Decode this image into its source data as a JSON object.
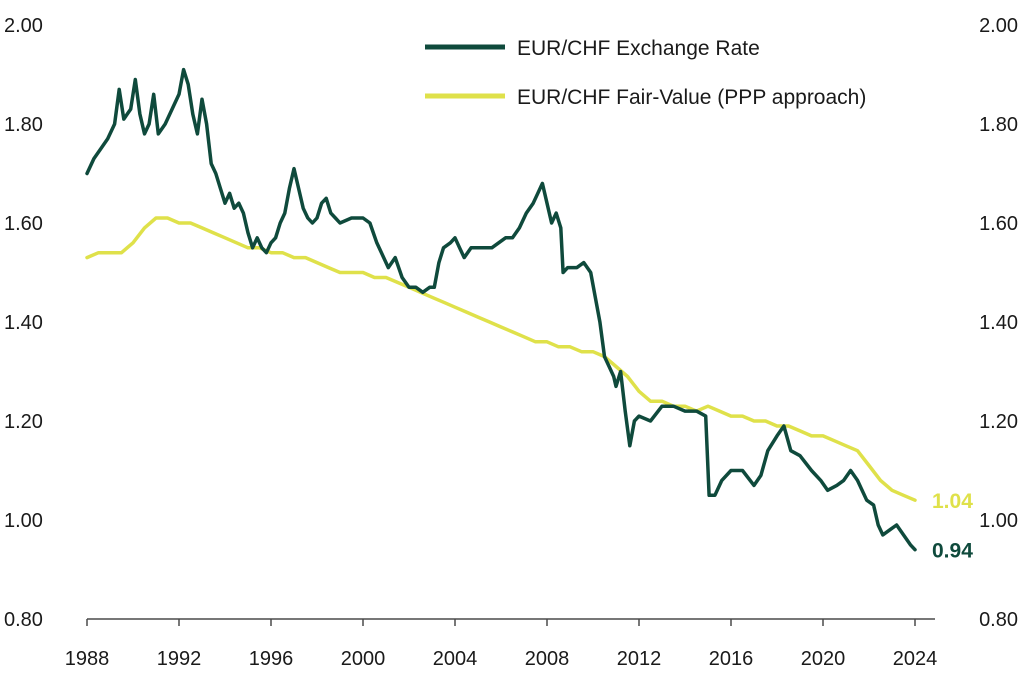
{
  "chart_data": {
    "type": "line",
    "title": "",
    "xlabel": "",
    "ylabel": "",
    "xlim": [
      1988,
      2024.5
    ],
    "ylim": [
      0.8,
      2.0
    ],
    "grid": false,
    "legend_position": "top-right",
    "x_ticks": [
      "1988",
      "1992",
      "1996",
      "2000",
      "2004",
      "2008",
      "2012",
      "2016",
      "2020",
      "2024"
    ],
    "x_tick_values": [
      1988,
      1992,
      1996,
      2000,
      2004,
      2008,
      2012,
      2016,
      2020,
      2024
    ],
    "y_ticks_left": [
      "0.80",
      "1.00",
      "1.20",
      "1.40",
      "1.60",
      "1.80",
      "2.00"
    ],
    "y_ticks_right": [
      "0.80",
      "1.00",
      "1.20",
      "1.40",
      "1.60",
      "1.80",
      "2.00"
    ],
    "y_tick_values": [
      0.8,
      1.0,
      1.2,
      1.4,
      1.6,
      1.8,
      2.0
    ],
    "series": [
      {
        "name": "EUR/CHF Exchange Rate",
        "color": "#0f4a3c",
        "end_label": "0.94",
        "points": [
          [
            1988.0,
            1.7
          ],
          [
            1988.3,
            1.73
          ],
          [
            1988.6,
            1.75
          ],
          [
            1988.9,
            1.77
          ],
          [
            1989.2,
            1.8
          ],
          [
            1989.4,
            1.87
          ],
          [
            1989.6,
            1.81
          ],
          [
            1989.9,
            1.83
          ],
          [
            1990.1,
            1.89
          ],
          [
            1990.3,
            1.82
          ],
          [
            1990.5,
            1.78
          ],
          [
            1990.7,
            1.8
          ],
          [
            1990.9,
            1.86
          ],
          [
            1991.1,
            1.78
          ],
          [
            1991.4,
            1.8
          ],
          [
            1991.7,
            1.83
          ],
          [
            1992.0,
            1.86
          ],
          [
            1992.2,
            1.91
          ],
          [
            1992.4,
            1.88
          ],
          [
            1992.6,
            1.82
          ],
          [
            1992.8,
            1.78
          ],
          [
            1993.0,
            1.85
          ],
          [
            1993.2,
            1.8
          ],
          [
            1993.4,
            1.72
          ],
          [
            1993.6,
            1.7
          ],
          [
            1993.8,
            1.67
          ],
          [
            1994.0,
            1.64
          ],
          [
            1994.2,
            1.66
          ],
          [
            1994.4,
            1.63
          ],
          [
            1994.6,
            1.64
          ],
          [
            1994.8,
            1.62
          ],
          [
            1995.0,
            1.58
          ],
          [
            1995.2,
            1.55
          ],
          [
            1995.4,
            1.57
          ],
          [
            1995.6,
            1.55
          ],
          [
            1995.8,
            1.54
          ],
          [
            1996.0,
            1.56
          ],
          [
            1996.2,
            1.57
          ],
          [
            1996.4,
            1.6
          ],
          [
            1996.6,
            1.62
          ],
          [
            1996.8,
            1.67
          ],
          [
            1997.0,
            1.71
          ],
          [
            1997.2,
            1.67
          ],
          [
            1997.4,
            1.63
          ],
          [
            1997.6,
            1.61
          ],
          [
            1997.8,
            1.6
          ],
          [
            1998.0,
            1.61
          ],
          [
            1998.2,
            1.64
          ],
          [
            1998.4,
            1.65
          ],
          [
            1998.6,
            1.62
          ],
          [
            1998.8,
            1.61
          ],
          [
            1999.0,
            1.6
          ],
          [
            1999.5,
            1.61
          ],
          [
            2000.0,
            1.61
          ],
          [
            2000.3,
            1.6
          ],
          [
            2000.6,
            1.56
          ],
          [
            2000.9,
            1.53
          ],
          [
            2001.1,
            1.51
          ],
          [
            2001.4,
            1.53
          ],
          [
            2001.7,
            1.49
          ],
          [
            2002.0,
            1.47
          ],
          [
            2002.3,
            1.47
          ],
          [
            2002.6,
            1.46
          ],
          [
            2002.9,
            1.47
          ],
          [
            2003.1,
            1.47
          ],
          [
            2003.3,
            1.52
          ],
          [
            2003.5,
            1.55
          ],
          [
            2003.8,
            1.56
          ],
          [
            2004.0,
            1.57
          ],
          [
            2004.2,
            1.55
          ],
          [
            2004.4,
            1.53
          ],
          [
            2004.7,
            1.55
          ],
          [
            2005.0,
            1.55
          ],
          [
            2005.3,
            1.55
          ],
          [
            2005.6,
            1.55
          ],
          [
            2005.9,
            1.56
          ],
          [
            2006.2,
            1.57
          ],
          [
            2006.5,
            1.57
          ],
          [
            2006.8,
            1.59
          ],
          [
            2007.1,
            1.62
          ],
          [
            2007.4,
            1.64
          ],
          [
            2007.6,
            1.66
          ],
          [
            2007.8,
            1.68
          ],
          [
            2008.0,
            1.64
          ],
          [
            2008.2,
            1.6
          ],
          [
            2008.4,
            1.62
          ],
          [
            2008.6,
            1.59
          ],
          [
            2008.7,
            1.5
          ],
          [
            2008.9,
            1.51
          ],
          [
            2009.1,
            1.51
          ],
          [
            2009.3,
            1.51
          ],
          [
            2009.6,
            1.52
          ],
          [
            2009.9,
            1.5
          ],
          [
            2010.1,
            1.45
          ],
          [
            2010.3,
            1.4
          ],
          [
            2010.5,
            1.33
          ],
          [
            2010.7,
            1.31
          ],
          [
            2010.9,
            1.29
          ],
          [
            2011.0,
            1.27
          ],
          [
            2011.2,
            1.3
          ],
          [
            2011.4,
            1.22
          ],
          [
            2011.6,
            1.15
          ],
          [
            2011.8,
            1.2
          ],
          [
            2012.0,
            1.21
          ],
          [
            2012.5,
            1.2
          ],
          [
            2013.0,
            1.23
          ],
          [
            2013.5,
            1.23
          ],
          [
            2014.0,
            1.22
          ],
          [
            2014.5,
            1.22
          ],
          [
            2014.9,
            1.21
          ],
          [
            2015.05,
            1.05
          ],
          [
            2015.3,
            1.05
          ],
          [
            2015.6,
            1.08
          ],
          [
            2016.0,
            1.1
          ],
          [
            2016.5,
            1.1
          ],
          [
            2017.0,
            1.07
          ],
          [
            2017.3,
            1.09
          ],
          [
            2017.6,
            1.14
          ],
          [
            2018.0,
            1.17
          ],
          [
            2018.3,
            1.19
          ],
          [
            2018.6,
            1.14
          ],
          [
            2019.0,
            1.13
          ],
          [
            2019.5,
            1.1
          ],
          [
            2019.9,
            1.08
          ],
          [
            2020.2,
            1.06
          ],
          [
            2020.6,
            1.07
          ],
          [
            2020.9,
            1.08
          ],
          [
            2021.2,
            1.1
          ],
          [
            2021.5,
            1.08
          ],
          [
            2021.9,
            1.04
          ],
          [
            2022.2,
            1.03
          ],
          [
            2022.4,
            0.99
          ],
          [
            2022.6,
            0.97
          ],
          [
            2022.9,
            0.98
          ],
          [
            2023.2,
            0.99
          ],
          [
            2023.5,
            0.97
          ],
          [
            2023.8,
            0.95
          ],
          [
            2024.0,
            0.94
          ]
        ]
      },
      {
        "name": "EUR/CHF Fair-Value (PPP approach)",
        "color": "#dfe14a",
        "end_label": "1.04",
        "points": [
          [
            1988.0,
            1.53
          ],
          [
            1988.5,
            1.54
          ],
          [
            1989.0,
            1.54
          ],
          [
            1989.5,
            1.54
          ],
          [
            1990.0,
            1.56
          ],
          [
            1990.5,
            1.59
          ],
          [
            1991.0,
            1.61
          ],
          [
            1991.5,
            1.61
          ],
          [
            1992.0,
            1.6
          ],
          [
            1992.5,
            1.6
          ],
          [
            1993.0,
            1.59
          ],
          [
            1993.5,
            1.58
          ],
          [
            1994.0,
            1.57
          ],
          [
            1994.5,
            1.56
          ],
          [
            1995.0,
            1.55
          ],
          [
            1995.5,
            1.55
          ],
          [
            1996.0,
            1.54
          ],
          [
            1996.5,
            1.54
          ],
          [
            1997.0,
            1.53
          ],
          [
            1997.5,
            1.53
          ],
          [
            1998.0,
            1.52
          ],
          [
            1998.5,
            1.51
          ],
          [
            1999.0,
            1.5
          ],
          [
            1999.5,
            1.5
          ],
          [
            2000.0,
            1.5
          ],
          [
            2000.5,
            1.49
          ],
          [
            2001.0,
            1.49
          ],
          [
            2001.5,
            1.48
          ],
          [
            2002.0,
            1.47
          ],
          [
            2002.5,
            1.46
          ],
          [
            2003.0,
            1.45
          ],
          [
            2003.5,
            1.44
          ],
          [
            2004.0,
            1.43
          ],
          [
            2004.5,
            1.42
          ],
          [
            2005.0,
            1.41
          ],
          [
            2005.5,
            1.4
          ],
          [
            2006.0,
            1.39
          ],
          [
            2006.5,
            1.38
          ],
          [
            2007.0,
            1.37
          ],
          [
            2007.5,
            1.36
          ],
          [
            2008.0,
            1.36
          ],
          [
            2008.5,
            1.35
          ],
          [
            2009.0,
            1.35
          ],
          [
            2009.5,
            1.34
          ],
          [
            2010.0,
            1.34
          ],
          [
            2010.5,
            1.33
          ],
          [
            2011.0,
            1.31
          ],
          [
            2011.5,
            1.29
          ],
          [
            2012.0,
            1.26
          ],
          [
            2012.5,
            1.24
          ],
          [
            2013.0,
            1.24
          ],
          [
            2013.5,
            1.23
          ],
          [
            2014.0,
            1.23
          ],
          [
            2014.5,
            1.22
          ],
          [
            2015.0,
            1.23
          ],
          [
            2015.5,
            1.22
          ],
          [
            2016.0,
            1.21
          ],
          [
            2016.5,
            1.21
          ],
          [
            2017.0,
            1.2
          ],
          [
            2017.5,
            1.2
          ],
          [
            2018.0,
            1.19
          ],
          [
            2018.5,
            1.19
          ],
          [
            2019.0,
            1.18
          ],
          [
            2019.5,
            1.17
          ],
          [
            2020.0,
            1.17
          ],
          [
            2020.5,
            1.16
          ],
          [
            2021.0,
            1.15
          ],
          [
            2021.5,
            1.14
          ],
          [
            2022.0,
            1.11
          ],
          [
            2022.5,
            1.08
          ],
          [
            2023.0,
            1.06
          ],
          [
            2023.5,
            1.05
          ],
          [
            2024.0,
            1.04
          ]
        ]
      }
    ]
  }
}
